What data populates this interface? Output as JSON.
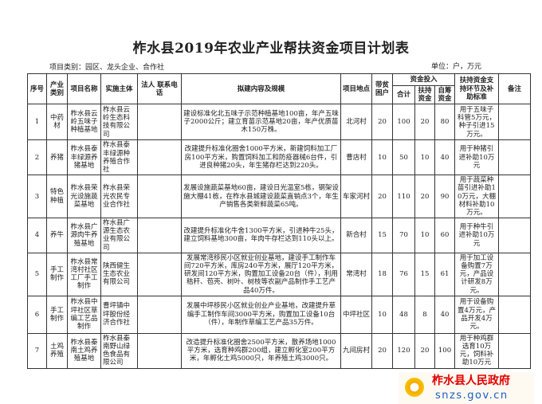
{
  "title": "柞水县2019年农业产业帮扶资金项目计划表",
  "category": "项目类别：园区、龙头企业、合作社",
  "unit": "单位：户，万元",
  "headers": {
    "seq": "序号",
    "industry": "产业类别",
    "project": "项目名称",
    "entity": "实施主体",
    "contact": "法人 联系电话",
    "content": "拟建内容及规模",
    "location": "项目地点",
    "poor": "带贫困户",
    "funds": "资金投入",
    "total": "合计",
    "support": "扶持资金",
    "self": "自筹资金",
    "standard": "扶持资金支持环节及补助标准",
    "remark": "备注"
  },
  "rows": [
    {
      "seq": "1",
      "industry": "中药材",
      "project": "柞水县云岭五味子种植基地",
      "entity": "柞水县云岭生态科技有限公司",
      "contact": "",
      "content": "建设标准化北五味子示范种植基地100亩，年产五味子2000公斤；建立育苗示范基地20亩，年产优质苗木150万株。",
      "location": "北河村",
      "poor": "20",
      "total": "100",
      "support": "20",
      "self": "80",
      "standard": "用于五味子科管5万元，种子引进15万元。",
      "remark": ""
    },
    {
      "seq": "2",
      "industry": "养猪",
      "project": "柞水县泰丰绿源养猪基地",
      "entity": "柞水县泰丰绿源种养殖合作社",
      "contact": "",
      "content": "改建提升标准化圈舍1000平方米，新建饲料加工厂房100平方米，购置饲料加工和防疫器械6台件，引进良种猪20头，年生猪存栏达到220头。",
      "location": "曹店村",
      "poor": "10",
      "total": "50",
      "support": "10",
      "self": "40",
      "standard": "用于种猪引进补助10万元",
      "remark": ""
    },
    {
      "seq": "3",
      "industry": "特色种植",
      "project": "柞水县荣光设施蔬菜基地",
      "entity": "柞水县荣光农民专业合作社",
      "contact": "",
      "content": "发展设施蔬菜基地60亩，建设日光温室5栋，钢架设施大棚41栋，在柞水县城建设蔬菜直销点3个，年生产销售各类新鲜蔬菜65吨。",
      "location": "车家河村",
      "poor": "20",
      "total": "110",
      "support": "20",
      "self": "90",
      "standard": "用于蔬菜种苗引进补助10万元，大棚材料补助10万元。",
      "remark": ""
    },
    {
      "seq": "4",
      "industry": "养牛",
      "project": "柞水县广源肉牛养殖基地",
      "entity": "柞水县广源生态农业有限公司",
      "contact": "",
      "content": "改建提升标准化牛舍1300平方米，引进种牛25头，建立饲料基地300亩，年肉牛存栏达到110头以上。",
      "location": "新合村",
      "poor": "15",
      "total": "70",
      "support": "10",
      "self": "60",
      "standard": "用于种牛引进补助10万元",
      "remark": ""
    },
    {
      "seq": "5",
      "industry": "手工制作",
      "project": "柞水县常湾村社区工厂手工制作",
      "entity": "陕西健生生态农业有限公司",
      "contact": "",
      "content": "发展常湾移民小区就业创业基地，建设手工制作车间720平方米，库房240平方米，展厅120平方米，研发间120平方米，购置加工设备20台（件），利用秸秆、苞壳、树叶、树枝等农副产品制作手工艺产品40万件。",
      "location": "常湾村",
      "poor": "18",
      "total": "76",
      "support": "15",
      "self": "61",
      "standard": "用于加工设备购置7万元，产品设计研发8万元。",
      "remark": ""
    },
    {
      "seq": "6",
      "industry": "手工制作",
      "project": "柞水县中坪社区草编工艺品制作",
      "entity": "曹坪镇中坪股份经济合作社",
      "contact": "",
      "content": "发展中坪移民小区就业创业产业基地，改建提升草编手工制作车间3000平方米，购置加工设备10台（件），年制作草编工艺产品35万件。",
      "location": "中坪社区",
      "poor": "10",
      "total": "48",
      "support": "8",
      "self": "40",
      "standard": "用于设备购置4万元，产品开发4万元。",
      "remark": ""
    },
    {
      "seq": "7",
      "industry": "土鸡养殖",
      "project": "柞水县秦南土鸡养殖基地",
      "entity": "柞水县秦南野山绿色食品有限公司",
      "contact": "",
      "content": "改造提升标准化圈舍2500平方米，散养场地1000平方米，选育种鸡群200组，建立孵化室200平方米，年孵化土鸡5000只，年养殖土鸡3000只。",
      "location": "九间房村",
      "poor": "20",
      "total": "120",
      "support": "20",
      "self": "100",
      "standard": "用于种鸡群选育10万元，饲料补助10万元",
      "remark": ""
    }
  ],
  "watermark": {
    "name": "柞水县人民政府",
    "url": "snzs.gov.cn",
    "logo_icon": "sun-logo-icon"
  }
}
